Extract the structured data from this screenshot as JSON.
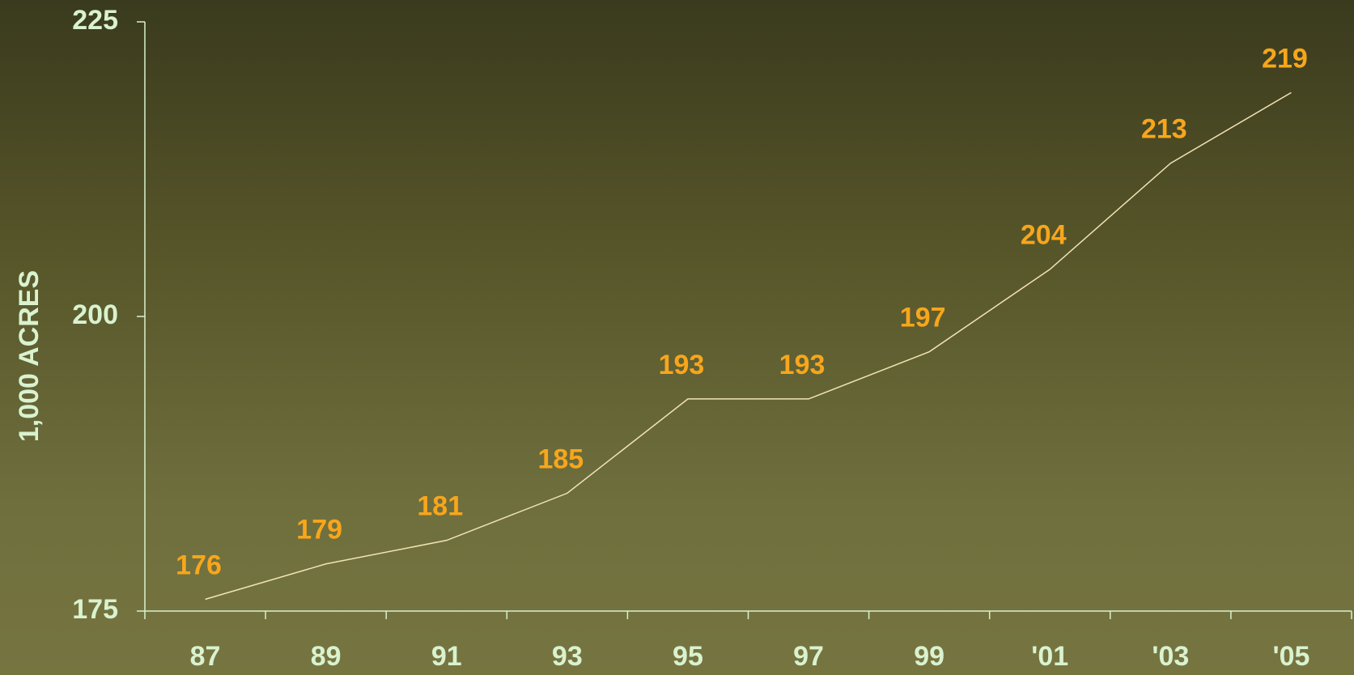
{
  "chart_data": {
    "type": "line",
    "y_label": "1,000 ACRES",
    "categories": [
      "87",
      "89",
      "91",
      "93",
      "95",
      "97",
      "99",
      "'01",
      "'03",
      "'05"
    ],
    "values": [
      176,
      179,
      181,
      185,
      193,
      193,
      197,
      204,
      213,
      219
    ],
    "color": "#f2e3b5",
    "label_color": "#f7a61c",
    "ylim": [
      175,
      225
    ],
    "yticks": [
      175,
      200,
      225
    ],
    "grid": false
  }
}
